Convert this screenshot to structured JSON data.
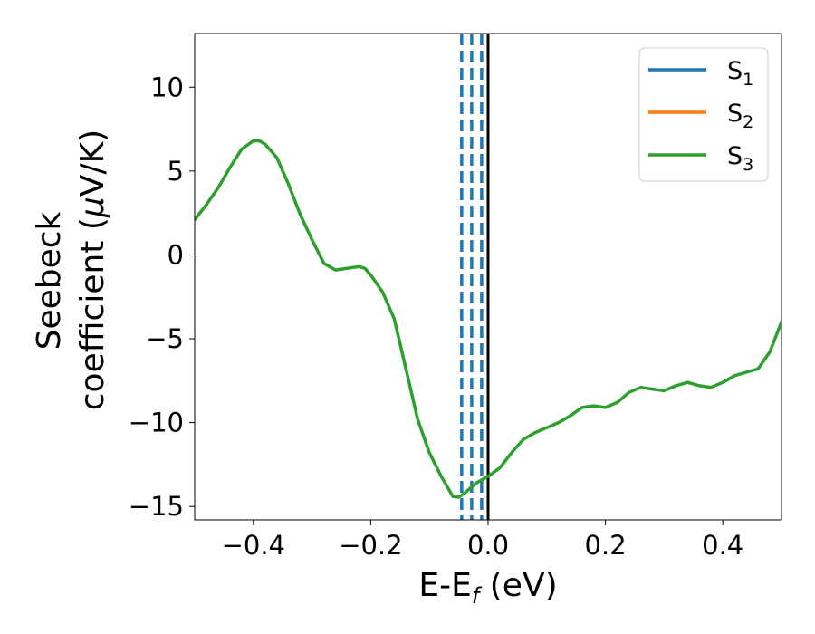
{
  "chart_data": {
    "type": "line",
    "title": "",
    "xlabel": {
      "main": "E-E",
      "sub": "f",
      "unit": " (eV)"
    },
    "ylabel": {
      "line1": "Seebeck",
      "line2_pre": "coefficient  (",
      "line2_mu": "μ",
      "line2_post": "V/K)"
    },
    "xlim": [
      -0.5,
      0.5
    ],
    "ylim": [
      -15.8,
      13.2
    ],
    "xticks": [
      -0.4,
      -0.2,
      0.0,
      0.2,
      0.4
    ],
    "xtick_labels": [
      "−0.4",
      "−0.2",
      "0.0",
      "0.2",
      "0.4"
    ],
    "yticks": [
      10,
      5,
      0,
      -5,
      -10,
      -15
    ],
    "ytick_labels": [
      "10",
      "5",
      "0",
      "−5",
      "−10",
      "−15"
    ],
    "grid": false,
    "legend": {
      "placement": "top-right"
    },
    "series": [
      {
        "name": "S",
        "sub": "1",
        "color": "#1f77b4",
        "values": []
      },
      {
        "name": "S",
        "sub": "2",
        "color": "#ff7f0e",
        "values": []
      },
      {
        "name": "S",
        "sub": "3",
        "color": "#2ca02c",
        "x": [
          -0.5,
          -0.48,
          -0.46,
          -0.44,
          -0.42,
          -0.4,
          -0.39,
          -0.38,
          -0.36,
          -0.34,
          -0.32,
          -0.3,
          -0.28,
          -0.26,
          -0.24,
          -0.22,
          -0.21,
          -0.2,
          -0.18,
          -0.16,
          -0.14,
          -0.12,
          -0.1,
          -0.08,
          -0.06,
          -0.05,
          -0.04,
          -0.02,
          0.0,
          0.02,
          0.04,
          0.06,
          0.08,
          0.1,
          0.12,
          0.14,
          0.16,
          0.18,
          0.2,
          0.22,
          0.24,
          0.26,
          0.28,
          0.3,
          0.32,
          0.34,
          0.36,
          0.38,
          0.4,
          0.42,
          0.44,
          0.46,
          0.48,
          0.5
        ],
        "y": [
          2.1,
          3.0,
          4.0,
          5.2,
          6.3,
          6.8,
          6.8,
          6.6,
          5.8,
          4.2,
          2.4,
          0.9,
          -0.5,
          -0.9,
          -0.8,
          -0.7,
          -0.8,
          -1.2,
          -2.2,
          -3.8,
          -6.8,
          -9.8,
          -11.8,
          -13.2,
          -14.4,
          -14.45,
          -14.2,
          -13.6,
          -13.2,
          -12.7,
          -11.8,
          -11.0,
          -10.6,
          -10.3,
          -10.0,
          -9.6,
          -9.1,
          -9.0,
          -9.1,
          -8.8,
          -8.2,
          -7.9,
          -8.0,
          -8.1,
          -7.8,
          -7.6,
          -7.8,
          -7.9,
          -7.6,
          -7.2,
          -7.0,
          -6.8,
          -5.8,
          -4.0
        ]
      }
    ],
    "vlines": [
      {
        "x": -0.045,
        "style": "dashed",
        "color": "#1f77b4"
      },
      {
        "x": -0.028,
        "style": "dashed",
        "color": "#1f77b4"
      },
      {
        "x": -0.011,
        "style": "dashed",
        "color": "#1f77b4"
      },
      {
        "x": 0.0,
        "style": "solid",
        "color": "#000000"
      }
    ]
  }
}
